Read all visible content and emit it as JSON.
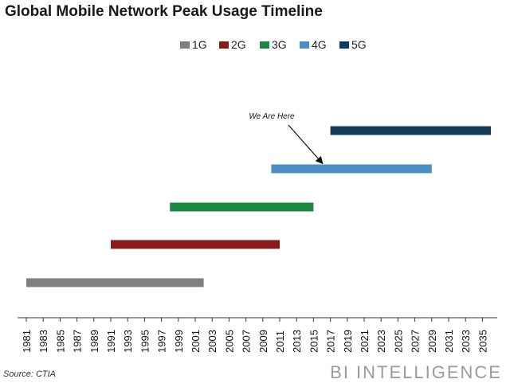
{
  "title": "Global Mobile Network Peak Usage Timeline",
  "source": "Source: CTIA",
  "brand": "BI INTELLIGENCE",
  "chart_data": {
    "type": "bar",
    "orientation": "horizontal-range",
    "title": "Global Mobile Network Peak Usage Timeline",
    "xlabel": "",
    "ylabel": "",
    "xlim": [
      1981,
      2036
    ],
    "x_ticks": [
      "1981",
      "1983",
      "1985",
      "1987",
      "1989",
      "1991",
      "1993",
      "1995",
      "1997",
      "1999",
      "2001",
      "2003",
      "2005",
      "2007",
      "2009",
      "2011",
      "2013",
      "2015",
      "2017",
      "2019",
      "2021",
      "2023",
      "2025",
      "2027",
      "2029",
      "2031",
      "2033",
      "2035"
    ],
    "grid": false,
    "legend_position": "top-center",
    "series": [
      {
        "name": "1G",
        "start": 1981,
        "end": 2002,
        "color": "#7f7f7f"
      },
      {
        "name": "2G",
        "start": 1991,
        "end": 2011,
        "color": "#8b1a1a"
      },
      {
        "name": "3G",
        "start": 1998,
        "end": 2015,
        "color": "#1a8a42"
      },
      {
        "name": "4G",
        "start": 2010,
        "end": 2029,
        "color": "#4a8fc4"
      },
      {
        "name": "5G",
        "start": 2017,
        "end": 2036,
        "color": "#163a5a"
      }
    ],
    "annotation": {
      "text": "We Are Here",
      "target_series": "4G",
      "target_year": 2016
    }
  }
}
